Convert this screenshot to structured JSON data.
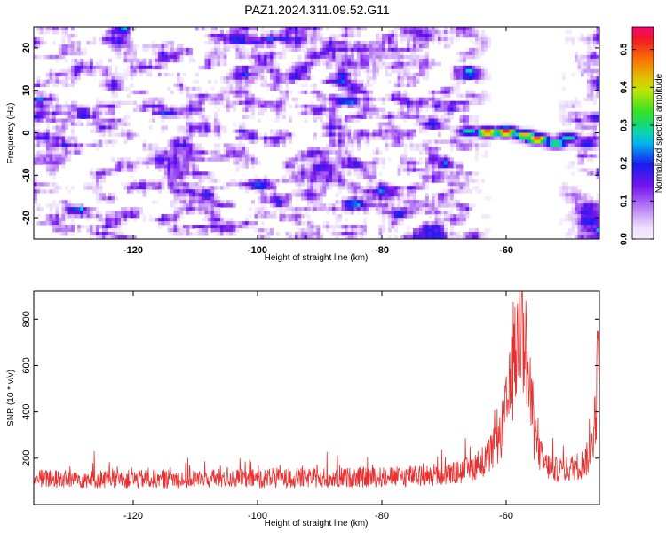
{
  "title": "PAZ1.2024.311.09.52.G11",
  "chart_data": [
    {
      "type": "heatmap",
      "xlabel": "Height of straight line (km)",
      "ylabel": "Frequency (Hz)",
      "xlim": [
        -136,
        -45
      ],
      "ylim": [
        -25,
        25
      ],
      "xticks": [
        -120,
        -100,
        -80,
        -60
      ],
      "yticks": [
        -20,
        -10,
        0,
        10,
        20
      ],
      "colorbar": {
        "label": "Normalized spectral amplitude",
        "range": [
          0.0,
          0.56
        ],
        "ticks": [
          "0.0",
          "0.1",
          "0.2",
          "0.3",
          "0.4",
          "0.5"
        ],
        "tick_values": [
          0.0,
          0.1,
          0.2,
          0.3,
          0.4,
          0.5
        ]
      },
      "background_noise_level": 0.06,
      "signal_ridge": [
        {
          "x": -66,
          "y": 0.3,
          "amplitude": 0.3
        },
        {
          "x": -63,
          "y": 0.1,
          "amplitude": 0.52
        },
        {
          "x": -60,
          "y": 0.2,
          "amplitude": 0.55
        },
        {
          "x": -57,
          "y": -0.6,
          "amplitude": 0.45
        },
        {
          "x": -55,
          "y": -1.5,
          "amplitude": 0.52
        },
        {
          "x": -52,
          "y": -2.5,
          "amplitude": 0.35
        },
        {
          "x": -50,
          "y": -1.2,
          "amplitude": 0.3
        },
        {
          "x": -47,
          "y": -2.6,
          "amplitude": 0.22
        },
        {
          "x": -45.5,
          "y": 3.5,
          "amplitude": 0.2
        }
      ],
      "clear_region_x": [
        -66,
        -48
      ]
    },
    {
      "type": "line",
      "xlabel": "Height of straight line (km)",
      "ylabel": "SNR (10 * v/v)",
      "xlim": [
        -136,
        -45
      ],
      "ylim": [
        0,
        920
      ],
      "xticks": [
        -120,
        -100,
        -80,
        -60
      ],
      "yticks": [
        200,
        400,
        600,
        800
      ],
      "grid": false,
      "line_color": "#e8302e",
      "profile": {
        "x": [
          -136,
          -120,
          -100,
          -80,
          -70,
          -66,
          -63,
          -61,
          -59.5,
          -58.5,
          -57.5,
          -57,
          -56.5,
          -55.5,
          -54,
          -52,
          -50,
          -48,
          -46.5,
          -45.5,
          -45
        ],
        "y": [
          110,
          110,
          112,
          118,
          125,
          150,
          200,
          280,
          470,
          640,
          790,
          730,
          560,
          300,
          175,
          150,
          155,
          170,
          210,
          420,
          900
        ]
      }
    }
  ]
}
